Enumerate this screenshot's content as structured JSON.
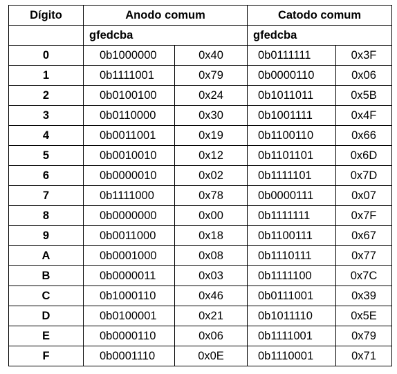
{
  "header": {
    "digit_label": "Dígito",
    "anode_label": "Anodo comum",
    "cathode_label": "Catodo comum",
    "anode_bits": "gfedcba",
    "cathode_bits": "gfedcba"
  },
  "rows": [
    {
      "digit": "0",
      "anode_bin": "0b1000000",
      "anode_hex": "0x40",
      "cathode_bin": "0b0111111",
      "cathode_hex": "0x3F"
    },
    {
      "digit": "1",
      "anode_bin": "0b1111001",
      "anode_hex": "0x79",
      "cathode_bin": "0b0000110",
      "cathode_hex": "0x06"
    },
    {
      "digit": "2",
      "anode_bin": "0b0100100",
      "anode_hex": "0x24",
      "cathode_bin": "0b1011011",
      "cathode_hex": "0x5B"
    },
    {
      "digit": "3",
      "anode_bin": "0b0110000",
      "anode_hex": "0x30",
      "cathode_bin": "0b1001111",
      "cathode_hex": "0x4F"
    },
    {
      "digit": "4",
      "anode_bin": "0b0011001",
      "anode_hex": "0x19",
      "cathode_bin": "0b1100110",
      "cathode_hex": "0x66"
    },
    {
      "digit": "5",
      "anode_bin": "0b0010010",
      "anode_hex": "0x12",
      "cathode_bin": "0b1101101",
      "cathode_hex": "0x6D"
    },
    {
      "digit": "6",
      "anode_bin": "0b0000010",
      "anode_hex": "0x02",
      "cathode_bin": "0b1111101",
      "cathode_hex": "0x7D"
    },
    {
      "digit": "7",
      "anode_bin": "0b1111000",
      "anode_hex": "0x78",
      "cathode_bin": "0b0000111",
      "cathode_hex": "0x07"
    },
    {
      "digit": "8",
      "anode_bin": "0b0000000",
      "anode_hex": "0x00",
      "cathode_bin": "0b1111111",
      "cathode_hex": "0x7F"
    },
    {
      "digit": "9",
      "anode_bin": "0b0011000",
      "anode_hex": "0x18",
      "cathode_bin": "0b1100111",
      "cathode_hex": "0x67"
    },
    {
      "digit": "A",
      "anode_bin": "0b0001000",
      "anode_hex": "0x08",
      "cathode_bin": "0b1110111",
      "cathode_hex": "0x77"
    },
    {
      "digit": "B",
      "anode_bin": "0b0000011",
      "anode_hex": "0x03",
      "cathode_bin": "0b1111100",
      "cathode_hex": "0x7C"
    },
    {
      "digit": "C",
      "anode_bin": "0b1000110",
      "anode_hex": "0x46",
      "cathode_bin": "0b0111001",
      "cathode_hex": "0x39"
    },
    {
      "digit": "D",
      "anode_bin": "0b0100001",
      "anode_hex": "0x21",
      "cathode_bin": "0b1011110",
      "cathode_hex": "0x5E"
    },
    {
      "digit": "E",
      "anode_bin": "0b0000110",
      "anode_hex": "0x06",
      "cathode_bin": "0b1111001",
      "cathode_hex": "0x79"
    },
    {
      "digit": "F",
      "anode_bin": "0b0001110",
      "anode_hex": "0x0E",
      "cathode_bin": "0b1110001",
      "cathode_hex": "0x71"
    }
  ]
}
